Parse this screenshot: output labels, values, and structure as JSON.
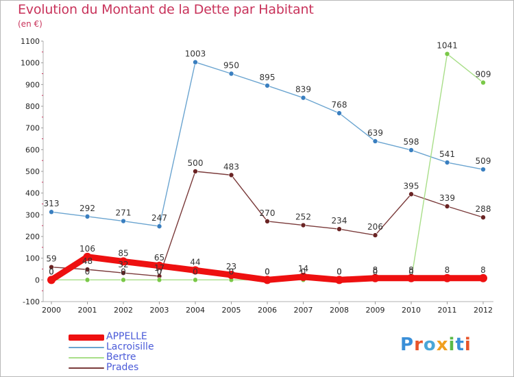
{
  "title": "Evolution du Montant de la Dette par Habitant",
  "subtitle": "(en €)",
  "logo": {
    "text": "Proxiti",
    "colors": [
      "#3a8fd8",
      "#e8542a",
      "#49a7d8",
      "#f0a020",
      "#5aba48",
      "#3a8fd8",
      "#e8542a"
    ]
  },
  "chart_data": {
    "type": "line",
    "title": "Evolution du Montant de la Dette par Habitant",
    "subtitle": "(en €)",
    "xlabel": "",
    "ylabel": "",
    "x": [
      "2000",
      "2001",
      "2002",
      "2003",
      "2004",
      "2005",
      "2006",
      "2007",
      "2008",
      "2009",
      "2010",
      "2011",
      "2012"
    ],
    "ylim": [
      -100,
      1100
    ],
    "yticks": [
      "-100",
      "0",
      "100",
      "200",
      "300",
      "400",
      "500",
      "600",
      "700",
      "800",
      "900",
      "1000",
      "1100"
    ],
    "grid": false,
    "legend": "bottom-left",
    "series": [
      {
        "name": "Lacroisille",
        "color": "#6aa4d0",
        "point_color": "#3a7fc0",
        "values": [
          313,
          292,
          271,
          247,
          1003,
          950,
          895,
          839,
          768,
          639,
          598,
          541,
          509
        ],
        "labels": [
          "313",
          "292",
          "271",
          "247",
          "1003",
          "950",
          "895",
          "839",
          "768",
          "639",
          "598",
          "541",
          "509"
        ]
      },
      {
        "name": "Prades",
        "color": "#7a3a3a",
        "point_color": "#6a2424",
        "values": [
          59,
          48,
          32,
          17,
          500,
          483,
          270,
          252,
          234,
          206,
          395,
          339,
          288
        ],
        "labels": [
          "59",
          "48",
          "32",
          "17",
          "500",
          "483",
          "270",
          "252",
          "234",
          "206",
          "395",
          "339",
          "288"
        ]
      },
      {
        "name": "Bertre",
        "color": "#a8de88",
        "point_color": "#7ac848",
        "values": [
          0,
          0,
          0,
          0,
          0,
          0,
          0,
          0,
          0,
          0,
          0,
          1041,
          909
        ],
        "labels": [
          "0",
          "0",
          "0",
          "0",
          "0",
          "0",
          "0",
          "0",
          "0",
          "0",
          "0",
          "1041",
          "909"
        ]
      },
      {
        "name": "APPELLE",
        "color": "#ee1010",
        "point_color": "#ee1010",
        "values": [
          0,
          106,
          85,
          65,
          44,
          23,
          0,
          14,
          0,
          8,
          8,
          8,
          8
        ],
        "labels": [
          "0",
          "106",
          "85",
          "65",
          "44",
          "23",
          "0",
          "14",
          "0",
          "8",
          "8",
          "8",
          "8"
        ]
      }
    ],
    "legend_entries": [
      {
        "name": "APPELLE",
        "color": "#ee1010",
        "thickness": 9
      },
      {
        "name": "Lacroisille",
        "color": "#6aa4d0",
        "thickness": 2
      },
      {
        "name": "Bertre",
        "color": "#a8de88",
        "thickness": 2
      },
      {
        "name": "Prades",
        "color": "#7a3a3a",
        "thickness": 2
      }
    ]
  }
}
